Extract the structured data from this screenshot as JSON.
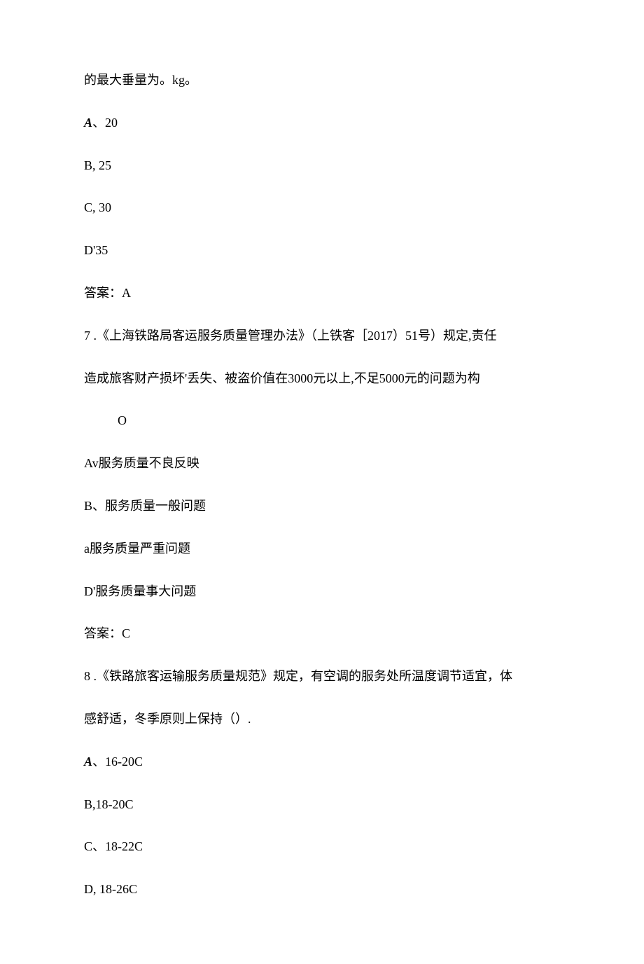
{
  "q6": {
    "stem_continued": "的最大垂量为。kg。",
    "option_a_label": "A",
    "option_a_sep": "、",
    "option_a_text": "20",
    "option_b": "B,   25",
    "option_c": "C,   30",
    "option_d": "D'35",
    "answer": "答案：A"
  },
  "q7": {
    "stem_line1": "7  .《上海铁路局客运服务质量管理办法》（上铁客［2017）51号）规定,责任",
    "stem_line2": "造成旅客财产损坏'丢失、被盗价值在3000元以上,不足5000元的问题为构",
    "stem_line3": "O",
    "option_a": "Av服务质量不良反映",
    "option_b": "B、服务质量一般问题",
    "option_c": "a服务质量严重问题",
    "option_d": "D'服务质量事大问题",
    "answer": "答案：C"
  },
  "q8": {
    "stem_line1": "8  .《铁路旅客运输服务质量规范》规定，有空调的服务处所温度调节适宜，体",
    "stem_line2": "感舒适，冬季原则上保持（）.",
    "option_a_label": "A",
    "option_a_sep": "、",
    "option_a_text": "16-20C",
    "option_b": "B,18-20C",
    "option_c": "C、18-22C",
    "option_d": "D,   18-26C"
  }
}
